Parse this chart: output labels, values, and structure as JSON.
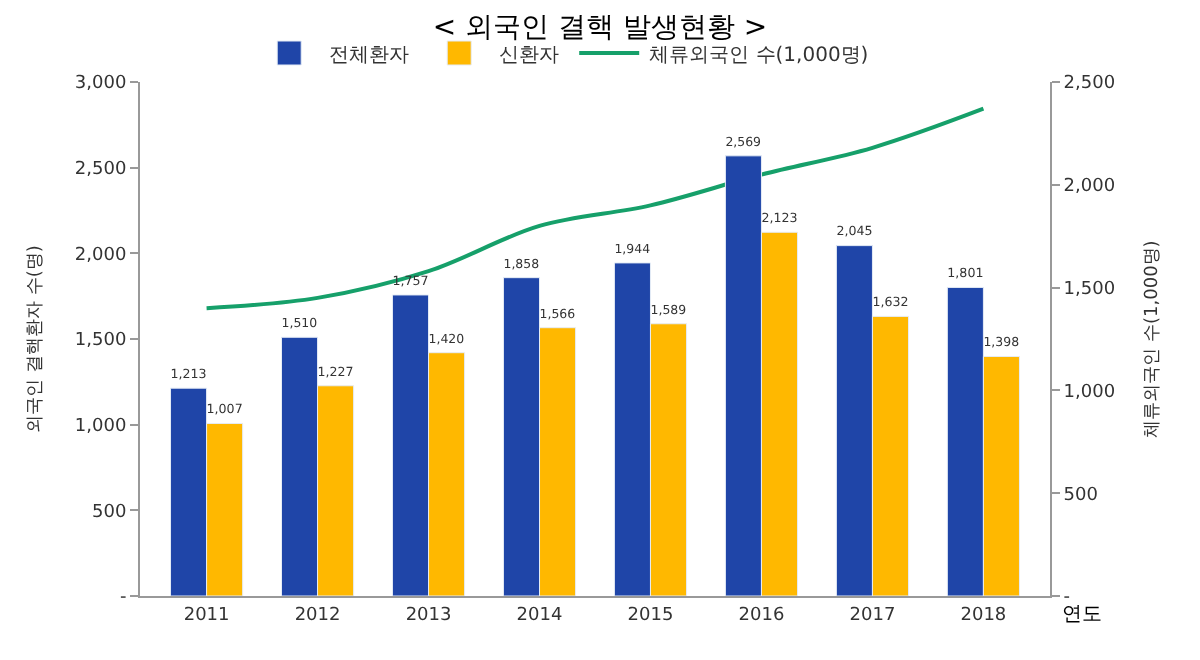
{
  "chart_data": {
    "type": "bar",
    "title": "< 외국인 결핵 발생현황 >",
    "xlabel": "연도",
    "ylabel": "외국인 결핵환자 수(명)",
    "y2label": "체류외국인 수(1,000명)",
    "categories": [
      "2011",
      "2012",
      "2013",
      "2014",
      "2015",
      "2016",
      "2017",
      "2018"
    ],
    "series": [
      {
        "name": "전체환자",
        "color": "#1f45a8",
        "values": [
          1213,
          1510,
          1757,
          1858,
          1944,
          2569,
          2045,
          1801
        ],
        "value_labels": [
          "1,213",
          "1,510",
          "1,757",
          "1,858",
          "1,944",
          "2,569",
          "2,045",
          "1,801"
        ]
      },
      {
        "name": "신환자",
        "color": "#ffb800",
        "values": [
          1007,
          1227,
          1420,
          1566,
          1589,
          2123,
          1632,
          1398
        ],
        "value_labels": [
          "1,007",
          "1,227",
          "1,420",
          "1,566",
          "1,589",
          "2,123",
          "1,632",
          "1,398"
        ]
      },
      {
        "name": "체류외국인 수(1,000명)",
        "type": "line",
        "axis": "y2",
        "color": "#16a06a",
        "values": [
          1400,
          1450,
          1580,
          1800,
          1900,
          2050,
          2180,
          2370
        ]
      }
    ],
    "ylim": [
      0,
      3000
    ],
    "yticks": [
      {
        "value": 0,
        "label": "-"
      },
      500,
      {
        "value": 1000,
        "label": "1,000"
      },
      {
        "value": 1500,
        "label": "1,500"
      },
      {
        "value": 2000,
        "label": "2,000"
      },
      {
        "value": 2500,
        "label": "2,500"
      },
      {
        "value": 3000,
        "label": "3,000"
      }
    ],
    "y2lim": [
      0,
      2500
    ],
    "y2ticks": [
      {
        "value": 0,
        "label": "-"
      },
      500,
      {
        "value": 1000,
        "label": "1,000"
      },
      {
        "value": 1500,
        "label": "1,500"
      },
      {
        "value": 2000,
        "label": "2,000"
      },
      {
        "value": 2500,
        "label": "2,500"
      }
    ],
    "legend": "top",
    "marker": "none"
  }
}
